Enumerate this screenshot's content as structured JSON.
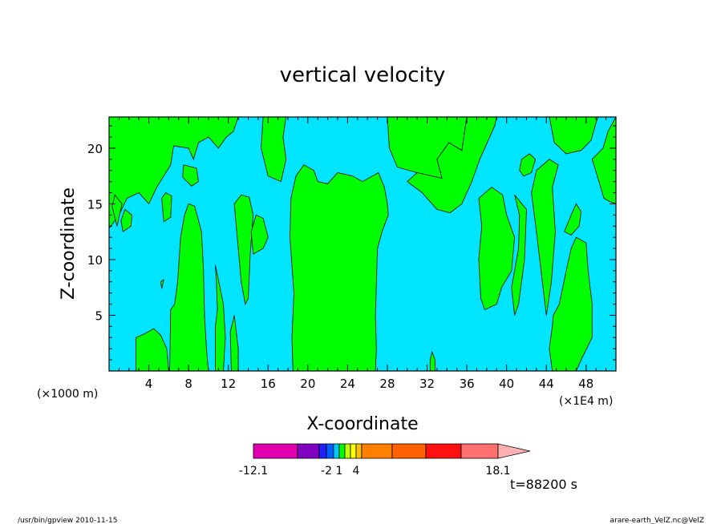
{
  "chart_data": {
    "type": "heatmap",
    "title": "vertical velocity",
    "xlabel": "X-coordinate",
    "ylabel": "Z-coordinate",
    "x_scale_label_left": "(×1000 m)",
    "x_scale_label_right": "(×1E4 m)",
    "x_ticks": [
      "4",
      "8",
      "12",
      "16",
      "20",
      "24",
      "28",
      "32",
      "36",
      "40",
      "44",
      "48"
    ],
    "y_ticks": [
      "5",
      "10",
      "15",
      "20"
    ],
    "xlim": [
      0,
      51
    ],
    "ylim": [
      0,
      22.8
    ],
    "background_color": "#00e5ff",
    "region_color": "#00ff00",
    "regions_description": "Green (weak positive) and cyan (weak negative) filled contours of vertical velocity",
    "colorbar": {
      "colors": [
        "#e000b0",
        "#8000c0",
        "#2020ff",
        "#0060ff",
        "#00c8ff",
        "#00ff00",
        "#c0ff00",
        "#ffff00",
        "#ffc000",
        "#ff8000",
        "#ff6000",
        "#ff1010",
        "#ff7070",
        "#ffb0b0"
      ],
      "tick_labels": [
        "-12.1",
        "-2",
        "1",
        "4",
        "18.1"
      ]
    },
    "time_label": "t=88200 s"
  },
  "footer": {
    "left": "/usr/bin/gpview   2010-11-15",
    "right": "arare-earth_VelZ.nc@VelZ"
  }
}
